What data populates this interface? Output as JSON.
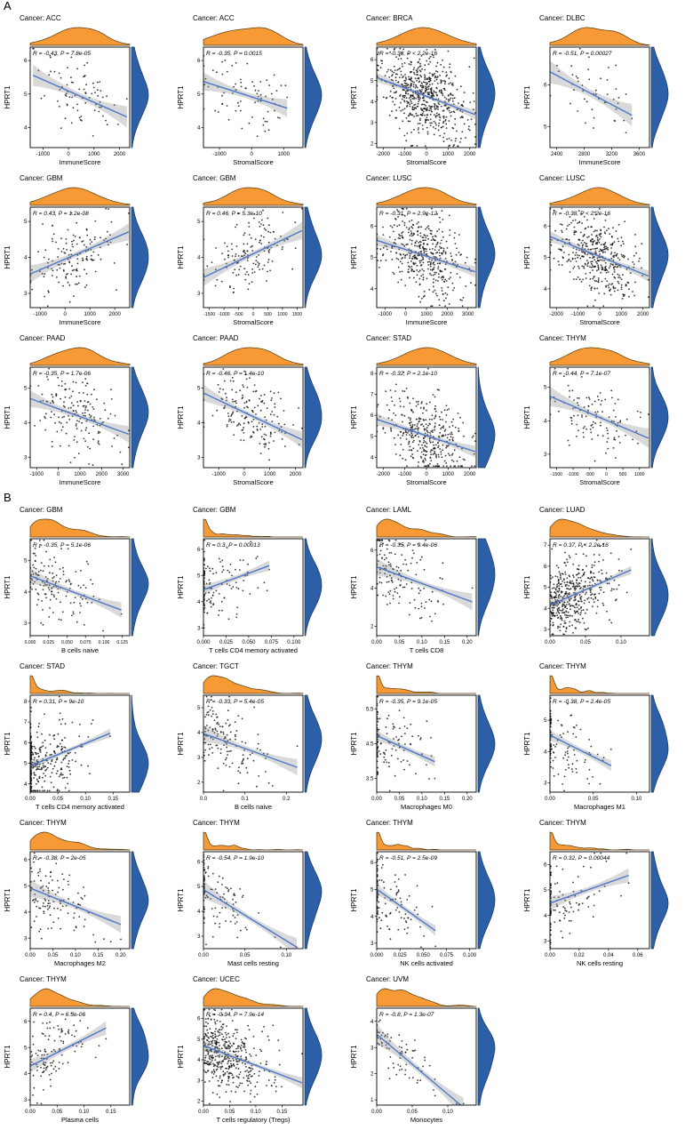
{
  "figure": {
    "panels": [
      {
        "label": "A"
      },
      {
        "label": "B"
      }
    ]
  },
  "style": {
    "orange": "#F79A36",
    "orange_stroke": "#503a10",
    "blue": "#2C5FA7",
    "blue_stroke": "#16365f",
    "line": "#4a77c9",
    "band": "#888888",
    "point": "#111111",
    "axis": "#000000"
  },
  "chart_data": [
    {
      "panel": "A",
      "type": "scatter",
      "title": "Cancer: ACC",
      "stats": "R = -0.43, P = 7.8e-05",
      "r": -0.43,
      "n": 80,
      "shape": "bell",
      "xlabel": "ImmuneScore",
      "ylabel": "HPRT1",
      "xticks": [
        "-1000",
        "0",
        "1000",
        "2000"
      ],
      "yticks": [
        "4",
        "5",
        "6"
      ],
      "xlim": [
        -1500,
        2400
      ],
      "ylim": [
        3.4,
        6.4
      ]
    },
    {
      "panel": "A",
      "type": "scatter",
      "title": "Cancer: ACC",
      "stats": "R = -0.35, P = 0.0015",
      "r": -0.35,
      "n": 80,
      "shape": "bell",
      "xlabel": "StromalScore",
      "ylabel": "HPRT1",
      "xticks": [
        "-1000",
        "0",
        "1000"
      ],
      "yticks": [
        "4",
        "5",
        "6"
      ],
      "xlim": [
        -1500,
        1600
      ],
      "ylim": [
        3.4,
        6.4
      ]
    },
    {
      "panel": "A",
      "type": "scatter",
      "title": "Cancer: BRCA",
      "stats": "R = -0.38, P < 2.2e-16",
      "r": -0.38,
      "n": 650,
      "shape": "bell",
      "xlabel": "StromalScore",
      "ylabel": "HPRT1",
      "xticks": [
        "-2000",
        "-1000",
        "0",
        "1000",
        "2000"
      ],
      "yticks": [
        "2",
        "3",
        "4",
        "5",
        "6"
      ],
      "xlim": [
        -2300,
        2300
      ],
      "ylim": [
        1.8,
        6.6
      ]
    },
    {
      "panel": "A",
      "type": "scatter",
      "title": "Cancer: DLBC",
      "stats": "R = -0.51, P = 0.00027",
      "r": -0.51,
      "n": 46,
      "shape": "bell",
      "xlabel": "ImmuneScore",
      "ylabel": "HPRT1",
      "xticks": [
        "2400",
        "2800",
        "3200",
        "3600"
      ],
      "yticks": [
        "5",
        "6"
      ],
      "xlim": [
        2300,
        3750
      ],
      "ylim": [
        4.5,
        6.9
      ]
    },
    {
      "panel": "A",
      "type": "scatter",
      "title": "Cancer: GBM",
      "stats": "R = 0.43, P = 1.2e-08",
      "r": 0.43,
      "n": 150,
      "shape": "bell",
      "xlabel": "ImmuneScore",
      "ylabel": "HPRT1",
      "xticks": [
        "-1000",
        "0",
        "1000",
        "2000"
      ],
      "yticks": [
        "3",
        "4",
        "5"
      ],
      "xlim": [
        -1400,
        2600
      ],
      "ylim": [
        2.6,
        5.4
      ]
    },
    {
      "panel": "A",
      "type": "scatter",
      "title": "Cancer: GBM",
      "stats": "R = 0.46, P = 5.3e-10",
      "r": 0.46,
      "n": 150,
      "shape": "bell",
      "xlabel": "StromalScore",
      "ylabel": "HPRT1",
      "xticks": [
        "-1500",
        "-1000",
        "-500",
        "0",
        "500",
        "1000",
        "1500"
      ],
      "yticks": [
        "3",
        "4",
        "5"
      ],
      "xlim": [
        -1700,
        1700
      ],
      "ylim": [
        2.6,
        5.4
      ]
    },
    {
      "panel": "A",
      "type": "scatter",
      "title": "Cancer: LUSC",
      "stats": "R = -0.31, P = 2.9e-12",
      "r": -0.31,
      "n": 430,
      "shape": "bell",
      "xlabel": "ImmuneScore",
      "ylabel": "HPRT1",
      "xticks": [
        "-1000",
        "0",
        "1000",
        "2000",
        "3000"
      ],
      "yticks": [
        "4",
        "5",
        "6"
      ],
      "xlim": [
        -1400,
        3400
      ],
      "ylim": [
        3.4,
        6.6
      ]
    },
    {
      "panel": "A",
      "type": "scatter",
      "title": "Cancer: LUSC",
      "stats": "R = -0.38, P < 2.2e-16",
      "r": -0.38,
      "n": 430,
      "shape": "bell",
      "xlabel": "StromalScore",
      "ylabel": "HPRT1",
      "xticks": [
        "-2000",
        "-1000",
        "0",
        "1000",
        "2000"
      ],
      "yticks": [
        "4",
        "5",
        "6"
      ],
      "xlim": [
        -2300,
        2300
      ],
      "ylim": [
        3.4,
        6.6
      ]
    },
    {
      "panel": "A",
      "type": "scatter",
      "title": "Cancer: PAAD",
      "stats": "R = -0.35, P = 1.7e-06",
      "r": -0.35,
      "n": 170,
      "shape": "bell",
      "xlabel": "ImmuneScore",
      "ylabel": "HPRT1",
      "xticks": [
        "-1000",
        "0",
        "1000",
        "2000",
        "3000"
      ],
      "yticks": [
        "3",
        "4",
        "5"
      ],
      "xlim": [
        -1300,
        3300
      ],
      "ylim": [
        2.7,
        5.6
      ]
    },
    {
      "panel": "A",
      "type": "scatter",
      "title": "Cancer: PAAD",
      "stats": "R = -0.46, P = 1.4e-10",
      "r": -0.46,
      "n": 170,
      "shape": "bell",
      "xlabel": "StromalScore",
      "ylabel": "HPRT1",
      "xticks": [
        "-1000",
        "0",
        "1000",
        "2000"
      ],
      "yticks": [
        "3",
        "4",
        "5"
      ],
      "xlim": [
        -1600,
        2300
      ],
      "ylim": [
        2.7,
        5.6
      ]
    },
    {
      "panel": "A",
      "type": "scatter",
      "title": "Cancer: STAD",
      "stats": "R = -0.32, P = 2.1e-10",
      "r": -0.32,
      "n": 370,
      "shape": "bell",
      "yc": 0.32,
      "xlabel": "StromalScore",
      "ylabel": "HPRT1",
      "xticks": [
        "-2000",
        "-1000",
        "0",
        "1000",
        "2000"
      ],
      "yticks": [
        "4",
        "5",
        "6",
        "7",
        "8"
      ],
      "xlim": [
        -2300,
        2300
      ],
      "ylim": [
        3.5,
        8.3
      ]
    },
    {
      "panel": "A",
      "type": "scatter",
      "title": "Cancer: THYM",
      "stats": "R = -0.44, P = 7.1e-07",
      "r": -0.44,
      "n": 115,
      "shape": "bell",
      "xlabel": "StromalScore",
      "ylabel": "HPRT1",
      "xticks": [
        "-1500",
        "-1000",
        "-500",
        "0",
        "500",
        "1000"
      ],
      "yticks": [
        "3",
        "4",
        "5"
      ],
      "xlim": [
        -1700,
        1300
      ],
      "ylim": [
        2.6,
        5.6
      ]
    },
    {
      "panel": "B",
      "type": "scatter",
      "title": "Cancer: GBM",
      "stats": "R = -0.35, P = 5.1e-06",
      "r": -0.35,
      "n": 150,
      "shape": "skew",
      "xlabel": "B cells naive",
      "ylabel": "HPRT1",
      "xticks": [
        "0.000",
        "0.025",
        "0.050",
        "0.075",
        "0.100",
        "0.125"
      ],
      "yticks": [
        "3",
        "4",
        "5"
      ],
      "xlim": [
        0,
        0.135
      ],
      "ylim": [
        2.6,
        5.7
      ]
    },
    {
      "panel": "B",
      "type": "scatter",
      "title": "Cancer: GBM",
      "stats": "R = 0.3, P = 0.00013",
      "r": 0.3,
      "n": 150,
      "shape": "spike",
      "xlabel": "T cells CD4 memory activated",
      "ylabel": "HPRT1",
      "xticks": [
        "0.000",
        "0.025",
        "0.050",
        "0.075",
        "0.100"
      ],
      "yticks": [
        "3",
        "4",
        "5",
        "6"
      ],
      "xlim": [
        0,
        0.11
      ],
      "ylim": [
        2.7,
        6.4
      ]
    },
    {
      "panel": "B",
      "type": "scatter",
      "title": "Cancer: LAML",
      "stats": "R = -0.35, P = 9.4e-06",
      "r": -0.35,
      "n": 140,
      "shape": "skew",
      "yc": 0.62,
      "xlabel": "T cells CD8",
      "ylabel": "HPRT1",
      "xticks": [
        "0.00",
        "0.05",
        "0.10",
        "0.15",
        "0.20"
      ],
      "yticks": [
        "2",
        "4",
        "6"
      ],
      "xlim": [
        0,
        0.22
      ],
      "ylim": [
        1.5,
        6.6
      ]
    },
    {
      "panel": "B",
      "type": "scatter",
      "title": "Cancer: LUAD",
      "stats": "R = 0.37, P < 2.2e-16",
      "r": 0.37,
      "n": 440,
      "shape": "skew",
      "yc": 0.42,
      "xlabel": "",
      "ylabel": "HPRT1",
      "xticks": [
        "0.00",
        "0.05",
        "0.10"
      ],
      "yticks": [
        "3",
        "4",
        "5",
        "6",
        "7"
      ],
      "xlim": [
        0,
        0.14
      ],
      "ylim": [
        2.7,
        7.3
      ]
    },
    {
      "panel": "B",
      "type": "scatter",
      "title": "Cancer: STAD",
      "stats": "R = 0.31, P = 9e-10",
      "r": 0.31,
      "n": 370,
      "shape": "spike",
      "yc": 0.32,
      "xlabel": "T cells CD4 memory activated",
      "ylabel": "HPRT1",
      "xticks": [
        "0.00",
        "0.05",
        "0.10",
        "0.15"
      ],
      "yticks": [
        "4",
        "5",
        "6",
        "7",
        "8"
      ],
      "xlim": [
        0,
        0.18
      ],
      "ylim": [
        3.6,
        8.3
      ]
    },
    {
      "panel": "B",
      "type": "scatter",
      "title": "Cancer: TGCT",
      "stats": "R = -0.33, P = 5.4e-05",
      "r": -0.33,
      "n": 140,
      "shape": "skew",
      "xlabel": "B cells naive",
      "ylabel": "HPRT1",
      "xticks": [
        "0.0",
        "0.1",
        "0.2"
      ],
      "yticks": [
        "2",
        "3",
        "4",
        "5"
      ],
      "xlim": [
        0,
        0.24
      ],
      "ylim": [
        1.6,
        5.5
      ]
    },
    {
      "panel": "B",
      "type": "scatter",
      "title": "Cancer: THYM",
      "stats": "R = -0.35, P = 9.1e-05",
      "r": -0.35,
      "n": 115,
      "shape": "spike",
      "xlabel": "Macrophages M0",
      "ylabel": "HPRT1",
      "xticks": [
        "0.00",
        "0.05",
        "0.10",
        "0.15",
        "0.20"
      ],
      "yticks": [
        "3.5",
        "4.5",
        "5.5"
      ],
      "xlim": [
        0,
        0.22
      ],
      "ylim": [
        3.1,
        5.9
      ]
    },
    {
      "panel": "B",
      "type": "scatter",
      "title": "Cancer: THYM",
      "stats": "R = -0.38, P = 2.4e-05",
      "r": -0.38,
      "n": 115,
      "shape": "spike",
      "xlabel": "Macrophages M1",
      "ylabel": "HPRT1",
      "xticks": [
        "0.00",
        "0.05",
        "0.10"
      ],
      "yticks": [
        "3",
        "4",
        "5"
      ],
      "xlim": [
        0,
        0.115
      ],
      "ylim": [
        2.7,
        5.8
      ]
    },
    {
      "panel": "B",
      "type": "scatter",
      "title": "Cancer: THYM",
      "stats": "R = -0.38, P = 2e-05",
      "r": -0.38,
      "n": 115,
      "shape": "skew",
      "xlabel": "Macrophages M2",
      "ylabel": "HPRT1",
      "xticks": [
        "0.00",
        "0.05",
        "0.10",
        "0.15",
        "0.20"
      ],
      "yticks": [
        "3",
        "4",
        "5",
        "6"
      ],
      "xlim": [
        0,
        0.22
      ],
      "ylim": [
        2.6,
        6.3
      ]
    },
    {
      "panel": "B",
      "type": "scatter",
      "title": "Cancer: THYM",
      "stats": "R = -0.54, P = 1.9e-10",
      "r": -0.54,
      "n": 115,
      "shape": "spike",
      "xlabel": "Mast cells resting",
      "ylabel": "HPRT1",
      "xticks": [
        "0.00",
        "0.05",
        "0.10"
      ],
      "yticks": [
        "3",
        "4",
        "5",
        "6"
      ],
      "xlim": [
        0,
        0.12
      ],
      "ylim": [
        2.5,
        6.4
      ]
    },
    {
      "panel": "B",
      "type": "scatter",
      "title": "Cancer: THYM",
      "stats": "R = -0.51, P = 2.5e-09",
      "r": -0.51,
      "n": 115,
      "shape": "spike",
      "xlabel": "NK cells activated",
      "ylabel": "HPRT1",
      "xticks": [
        "0.000",
        "0.025",
        "0.050",
        "0.075",
        "0.100"
      ],
      "yticks": [
        "3",
        "4",
        "5",
        "6"
      ],
      "xlim": [
        0,
        0.107
      ],
      "ylim": [
        2.8,
        6.4
      ]
    },
    {
      "panel": "B",
      "type": "scatter",
      "title": "Cancer: THYM",
      "stats": "R = 0.32, P = 0.00044",
      "r": 0.32,
      "n": 115,
      "shape": "spike",
      "xlabel": "NK cells resting",
      "ylabel": "HPRT1",
      "xticks": [
        "0.00",
        "0.02",
        "0.04",
        "0.06"
      ],
      "yticks": [
        "3",
        "4",
        "5",
        "6"
      ],
      "xlim": [
        0,
        0.068
      ],
      "ylim": [
        2.7,
        6.5
      ]
    },
    {
      "panel": "B",
      "type": "scatter",
      "title": "Cancer: THYM",
      "stats": "R = 0.4, P = 6.3e-06",
      "r": 0.4,
      "n": 115,
      "shape": "skew",
      "xlabel": "Plasma cells",
      "ylabel": "HPRT1",
      "xticks": [
        "0.00",
        "0.05",
        "0.10",
        "0.15"
      ],
      "yticks": [
        "3",
        "4",
        "5",
        "6"
      ],
      "xlim": [
        0,
        0.185
      ],
      "ylim": [
        2.8,
        6.5
      ]
    },
    {
      "panel": "B",
      "type": "scatter",
      "title": "Cancer: UCEC",
      "stats": "R = -0.34, P = 7.9e-14",
      "r": -0.34,
      "n": 440,
      "shape": "skew",
      "xlabel": "T cells regulatory (Tregs)",
      "ylabel": "HPRT1",
      "xticks": [
        "0.00",
        "0.05",
        "0.10",
        "0.15"
      ],
      "yticks": [
        "2",
        "3",
        "4",
        "5",
        "6"
      ],
      "xlim": [
        0,
        0.19
      ],
      "ylim": [
        1.8,
        6.5
      ]
    },
    {
      "panel": "B",
      "type": "scatter",
      "title": "Cancer: UVM",
      "stats": "R = -0.8, P = 1.3e-07",
      "r": -0.8,
      "n": 75,
      "shape": "skew",
      "xlabel": "Monocytes",
      "ylabel": "HPRT1",
      "xticks": [
        "0.00",
        "0.05",
        "0.10"
      ],
      "yticks": [
        "1",
        "2",
        "3",
        "4"
      ],
      "xlim": [
        0,
        0.14
      ],
      "ylim": [
        0.8,
        4.5
      ]
    }
  ]
}
